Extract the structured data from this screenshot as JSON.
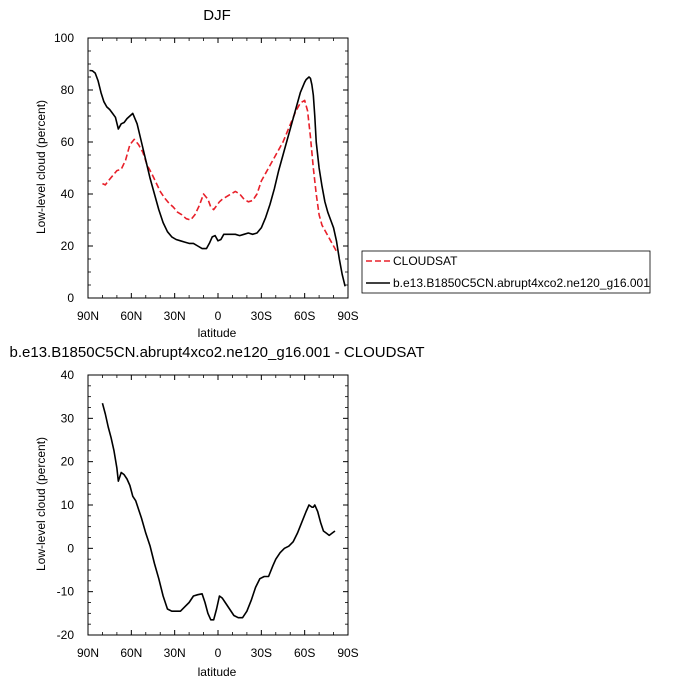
{
  "chart_data": [
    {
      "type": "line",
      "title": "DJF",
      "xlabel": "latitude",
      "ylabel": "Low-level cloud (percent)",
      "xlim": [
        90,
        -90
      ],
      "ylim": [
        0,
        100
      ],
      "x_ticks": [
        {
          "value": 90,
          "label": "90N"
        },
        {
          "value": 60,
          "label": "60N"
        },
        {
          "value": 30,
          "label": "30N"
        },
        {
          "value": 0,
          "label": "0"
        },
        {
          "value": -30,
          "label": "30S"
        },
        {
          "value": -60,
          "label": "60S"
        },
        {
          "value": -90,
          "label": "90S"
        }
      ],
      "y_ticks": [
        0,
        20,
        40,
        60,
        80,
        100
      ],
      "legend": {
        "placement": "right, outside plot"
      },
      "series": [
        {
          "name": "CLOUDSAT",
          "color": "#e8202a",
          "dash": "dashed",
          "x": [
            80,
            78,
            76,
            73,
            70,
            67,
            64,
            61,
            58,
            55,
            52,
            49,
            46,
            43,
            40,
            37,
            34,
            31,
            28,
            25,
            22,
            19,
            16,
            13,
            10,
            7,
            5,
            3,
            1,
            -1,
            -3,
            -6,
            -9,
            -12,
            -15,
            -18,
            -21,
            -24,
            -27,
            -30,
            -33,
            -36,
            -39,
            -42,
            -45,
            -48,
            -51,
            -54,
            -57,
            -60,
            -62,
            -64,
            -66,
            -68,
            -70,
            -72,
            -74,
            -76,
            -78,
            -80,
            -82
          ],
          "y": [
            44,
            43.5,
            45,
            47,
            49,
            49.5,
            53,
            59,
            61,
            59,
            56,
            51,
            48,
            44.5,
            41,
            38.5,
            36.5,
            35,
            33,
            32,
            30.5,
            30,
            32,
            35.5,
            40,
            38,
            35,
            34,
            35.5,
            37,
            38,
            39,
            40,
            41,
            40,
            38,
            37,
            37.5,
            40,
            45,
            48,
            51,
            54,
            57,
            60,
            64,
            68,
            72,
            75,
            76,
            72,
            62,
            50,
            40,
            32,
            28,
            26,
            24,
            22,
            20,
            18
          ]
        },
        {
          "name": "b.e13.B1850C5CN.abrupt4xco2.ne120_g16.001",
          "color": "#000000",
          "dash": "solid",
          "x": [
            89,
            87,
            85,
            83,
            81,
            79,
            77,
            75,
            73,
            71,
            69,
            67,
            65,
            63,
            61,
            59,
            56,
            53,
            50,
            47,
            44,
            41,
            38,
            35,
            32,
            29,
            26,
            23,
            20,
            17,
            14,
            11,
            8,
            6,
            4,
            2,
            0,
            -2,
            -4,
            -6,
            -9,
            -12,
            -15,
            -18,
            -21,
            -24,
            -27,
            -30,
            -33,
            -36,
            -39,
            -42,
            -45,
            -48,
            -51,
            -54,
            -57,
            -60,
            -61,
            -63,
            -64,
            -65,
            -66,
            -67,
            -68,
            -70,
            -72,
            -74,
            -76,
            -78,
            -80,
            -82,
            -84,
            -86,
            -88
          ],
          "y": [
            87.5,
            87.4,
            86.5,
            83.5,
            79,
            75.5,
            73.5,
            72.5,
            71,
            69.5,
            65,
            67,
            67.5,
            69,
            70,
            71,
            67,
            60,
            53,
            46,
            40,
            34,
            29,
            25.5,
            23.5,
            22.5,
            22,
            21.5,
            21,
            21,
            20,
            19,
            19,
            21,
            23.5,
            24,
            22,
            22.5,
            24.5,
            24.5,
            24.5,
            24.5,
            24,
            24.5,
            25,
            24.5,
            25,
            27,
            31,
            36,
            42,
            49,
            55,
            61,
            67,
            73,
            79,
            83,
            84,
            85,
            84.5,
            82,
            78,
            70,
            60,
            50,
            43,
            37,
            33,
            30,
            27,
            22,
            15,
            9,
            4.5
          ]
        }
      ]
    },
    {
      "type": "line",
      "title": "b.e13.B1850C5CN.abrupt4xco2.ne120_g16.001 - CLOUDSAT",
      "xlabel": "latitude",
      "ylabel": "Low-level cloud (percent)",
      "xlim": [
        90,
        -90
      ],
      "ylim": [
        -20,
        40
      ],
      "x_ticks": [
        {
          "value": 90,
          "label": "90N"
        },
        {
          "value": 60,
          "label": "60N"
        },
        {
          "value": 30,
          "label": "30N"
        },
        {
          "value": 0,
          "label": "0"
        },
        {
          "value": -30,
          "label": "30S"
        },
        {
          "value": -60,
          "label": "60S"
        },
        {
          "value": -90,
          "label": "90S"
        }
      ],
      "y_ticks": [
        -20,
        -10,
        0,
        10,
        20,
        30,
        40
      ],
      "series": [
        {
          "color": "#000000",
          "dash": "solid",
          "x": [
            80,
            78,
            76,
            74,
            72,
            70,
            69,
            68,
            67,
            65,
            63,
            61,
            59,
            57,
            55,
            53,
            50,
            47,
            44,
            41,
            38,
            35,
            32,
            29,
            26,
            23,
            20,
            17,
            14,
            11,
            9,
            7,
            5,
            3,
            1,
            -1,
            -3,
            -5,
            -8,
            -11,
            -14,
            -17,
            -20,
            -23,
            -26,
            -29,
            -32,
            -35,
            -38,
            -40,
            -43,
            -46,
            -49,
            -52,
            -55,
            -58,
            -61,
            -63,
            -65,
            -66,
            -67,
            -69,
            -71,
            -73,
            -75,
            -77,
            -79,
            -81
          ],
          "y": [
            33.5,
            31,
            28,
            25.5,
            22.5,
            18.5,
            15.5,
            16.5,
            17.5,
            17,
            16,
            14.5,
            12,
            11,
            9,
            7,
            3.5,
            0.5,
            -3.5,
            -7,
            -11,
            -14,
            -14.5,
            -14.5,
            -14.5,
            -13.5,
            -12.5,
            -11,
            -10.7,
            -10.5,
            -12.5,
            -15,
            -16.5,
            -16.5,
            -14,
            -11,
            -11.5,
            -12.5,
            -14,
            -15.5,
            -16,
            -16,
            -14.5,
            -12,
            -9,
            -7,
            -6.5,
            -6.5,
            -4,
            -2.5,
            -1,
            0,
            0.5,
            1.5,
            3.5,
            6,
            8.5,
            10,
            9.5,
            9.5,
            10,
            8.5,
            6,
            4,
            3.5,
            3,
            3.5,
            4
          ]
        }
      ]
    }
  ]
}
